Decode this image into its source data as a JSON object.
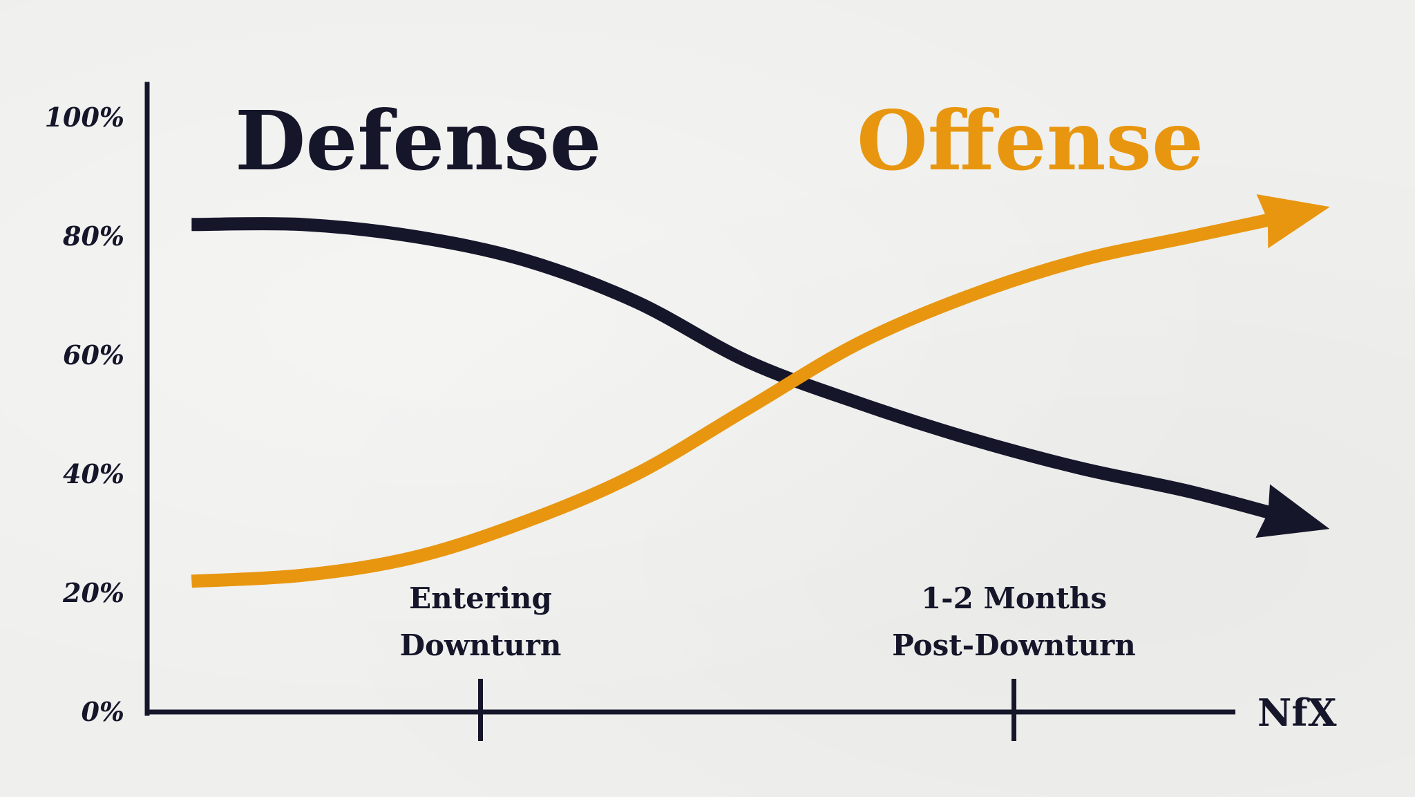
{
  "chart_data": {
    "type": "line",
    "x": [
      0,
      1,
      2,
      3,
      4,
      5,
      6,
      7,
      8,
      9,
      10
    ],
    "categories": [
      "Entering\nDownturn",
      "1-2 Months\nPost-Downturn"
    ],
    "category_positions": [
      2.6,
      7.4
    ],
    "yticks": [
      "0%",
      "20%",
      "40%",
      "60%",
      "80%",
      "100%"
    ],
    "ylim": [
      0,
      100
    ],
    "xlim": [
      -0.4,
      10.4
    ],
    "series": [
      {
        "name": "Defense",
        "color": "#15162a",
        "values": [
          82,
          82,
          80,
          76,
          69,
          59,
          52,
          46,
          41,
          37,
          32
        ]
      },
      {
        "name": "Offense",
        "color": "#e8960f",
        "values": [
          22,
          23,
          26,
          32,
          40,
          51,
          62,
          70,
          76,
          80,
          84
        ]
      }
    ],
    "brand": "NfX",
    "grid": false,
    "legend": "none"
  }
}
